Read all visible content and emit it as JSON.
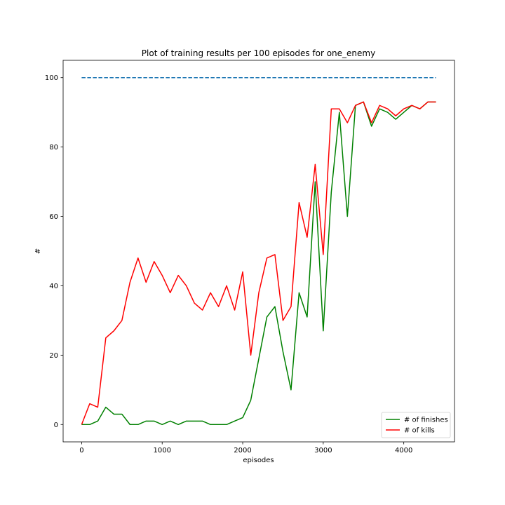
{
  "chart_data": {
    "type": "line",
    "title": "Plot of training results per 100 episodes for one_enemy",
    "xlabel": "episodes",
    "ylabel": "#",
    "xlim": [
      -230,
      4630
    ],
    "ylim": [
      -5,
      105
    ],
    "xticks": [
      0,
      1000,
      2000,
      3000,
      4000
    ],
    "yticks": [
      0,
      20,
      40,
      60,
      80,
      100
    ],
    "grid": false,
    "legend_position": "lower-right",
    "reference_line": {
      "y": 100,
      "x_start": 0,
      "x_end": 4400,
      "color": "#1f77b4",
      "style": "dashed"
    },
    "x": [
      0,
      100,
      200,
      300,
      400,
      500,
      600,
      700,
      800,
      900,
      1000,
      1100,
      1200,
      1300,
      1400,
      1500,
      1600,
      1700,
      1800,
      1900,
      2000,
      2100,
      2200,
      2300,
      2400,
      2500,
      2600,
      2700,
      2800,
      2900,
      3000,
      3100,
      3200,
      3300,
      3400,
      3500,
      3600,
      3700,
      3800,
      3900,
      4000,
      4100,
      4200,
      4300,
      4400
    ],
    "series": [
      {
        "name": "# of finishes",
        "color": "#008000",
        "values": [
          0,
          0,
          1,
          5,
          3,
          3,
          0,
          0,
          1,
          1,
          0,
          1,
          0,
          1,
          1,
          1,
          0,
          0,
          0,
          1,
          2,
          7,
          19,
          31,
          34,
          21,
          10,
          38,
          31,
          70,
          27,
          67,
          90,
          60,
          92,
          93,
          86,
          91,
          90,
          88,
          90,
          92,
          91,
          93,
          93
        ]
      },
      {
        "name": "# of kills",
        "color": "#ff0000",
        "values": [
          0,
          6,
          5,
          25,
          27,
          30,
          41,
          48,
          41,
          47,
          43,
          38,
          43,
          40,
          35,
          33,
          38,
          34,
          40,
          33,
          44,
          20,
          38,
          48,
          49,
          30,
          34,
          64,
          54,
          75,
          49,
          91,
          91,
          87,
          92,
          93,
          87,
          92,
          91,
          89,
          91,
          92,
          91,
          93,
          93
        ]
      }
    ]
  }
}
